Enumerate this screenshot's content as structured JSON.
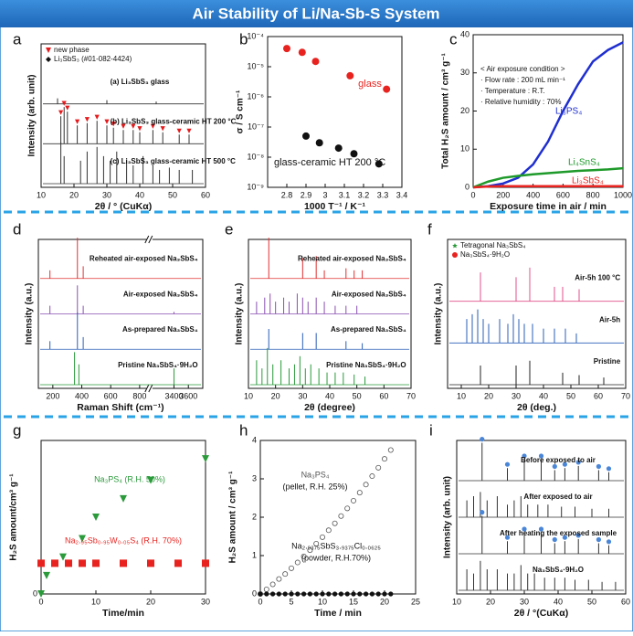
{
  "title": "Air Stability of Li/Na-Sb-S System",
  "chart_data": [
    {
      "type": "spectra",
      "panel": "a",
      "xlabel": "2θ / ° (CuKα)",
      "ylabel": "Intensity (arb. unit)",
      "xlim": [
        10,
        60
      ],
      "xticks": [
        10,
        20,
        30,
        40,
        50,
        60
      ],
      "legend": [
        {
          "label": "new phase",
          "marker": "triangle-down",
          "color": "#e41a1c"
        },
        {
          "label": "Li₃SbS₃ (#01-082-4424)",
          "marker": "diamond",
          "color": "#111111"
        }
      ],
      "series": [
        {
          "name": "(a) Li₃SbS₃ glass",
          "color": "#333333",
          "x": [
            15,
            30,
            45
          ],
          "values": [
            0.12,
            0.08,
            0.05
          ]
        },
        {
          "name": "(b) Li₃SbS₃ glass-ceramic HT 200 °C",
          "color": "#333333",
          "peak_marker": "#e41a1c",
          "x": [
            16,
            17,
            18,
            21,
            24,
            27,
            30,
            32,
            35,
            38,
            40,
            44,
            47,
            52,
            55
          ],
          "values": [
            0.6,
            0.8,
            0.7,
            0.4,
            0.45,
            0.5,
            0.4,
            0.35,
            0.3,
            0.3,
            0.25,
            0.3,
            0.25,
            0.2,
            0.2
          ]
        },
        {
          "name": "(c) Li₃SbS₃ glass-ceramic HT 500 °C",
          "color": "#333333",
          "x": [
            16,
            17,
            22,
            24,
            27,
            29,
            31,
            33,
            36,
            38,
            41,
            44,
            46,
            49,
            52,
            56
          ],
          "values": [
            0.9,
            0.6,
            0.5,
            0.7,
            0.8,
            0.6,
            0.5,
            0.7,
            0.5,
            0.4,
            0.6,
            0.4,
            0.3,
            0.35,
            0.3,
            0.3
          ]
        }
      ]
    },
    {
      "type": "scatter",
      "panel": "b",
      "xlabel": "1000 T⁻¹ / K⁻¹",
      "ylabel": "σ / S cm⁻¹",
      "ylog": true,
      "xlim": [
        2.7,
        3.4
      ],
      "xticks": [
        2.8,
        2.9,
        3.0,
        3.1,
        3.2,
        3.3,
        3.4
      ],
      "ylim": [
        1e-09,
        0.0001
      ],
      "yticks": [
        {
          "value": 1e-09,
          "label": "10⁻⁹"
        },
        {
          "value": 1e-08,
          "label": "10⁻⁸"
        },
        {
          "value": 1e-07,
          "label": "10⁻⁷"
        },
        {
          "value": 1e-06,
          "label": "10⁻⁶"
        },
        {
          "value": 1e-05,
          "label": "10⁻⁵"
        },
        {
          "value": 0.0001,
          "label": "10⁻⁴"
        }
      ],
      "series": [
        {
          "name": "glass",
          "color": "#e8231f",
          "marker": "circle",
          "x": [
            2.8,
            2.88,
            2.95,
            3.13,
            3.32
          ],
          "values": [
            4e-05,
            3e-05,
            1.5e-05,
            5e-06,
            1.8e-06
          ]
        },
        {
          "name": "glass-ceramic HT 200 °C",
          "color": "#111111",
          "marker": "circle",
          "x": [
            2.9,
            2.97,
            3.07,
            3.15,
            3.28
          ],
          "values": [
            5e-08,
            3e-08,
            2e-08,
            1.3e-08,
            6e-09
          ]
        }
      ]
    },
    {
      "type": "line",
      "panel": "c",
      "xlabel": "Exposure time in air / min",
      "ylabel": "Total H₂S amount / cm³ g⁻¹",
      "xlim": [
        0,
        1000
      ],
      "xticks": [
        0,
        200,
        400,
        600,
        800,
        1000
      ],
      "ylim": [
        0,
        40
      ],
      "yticks": [
        0,
        10,
        20,
        30,
        40
      ],
      "annotation": [
        "< Air exposure condition >",
        "· Flow rate : 200 mL min⁻¹",
        "· Temperature : R.T.",
        "· Relative humidity : 70%"
      ],
      "x": [
        0,
        100,
        200,
        300,
        400,
        500,
        600,
        700,
        800,
        900,
        1000
      ],
      "series": [
        {
          "name": "Li₃PS₄",
          "color": "#1f2fd0",
          "values": [
            0,
            0.3,
            1,
            2.5,
            6,
            12,
            20,
            27,
            33,
            36,
            38
          ]
        },
        {
          "name": "Li₄SnS₄",
          "color": "#1e9a2a",
          "values": [
            0,
            1.5,
            2.5,
            3,
            3.4,
            3.7,
            4,
            4.3,
            4.5,
            4.7,
            5
          ]
        },
        {
          "name": "Li₃SbS₄",
          "color": "#e8231f",
          "values": [
            0,
            0.2,
            0.3,
            0.3,
            0.3,
            0.3,
            0.3,
            0.3,
            0.3,
            0.3,
            0.3
          ]
        }
      ]
    },
    {
      "type": "spectra",
      "panel": "d",
      "xlabel": "Raman Shift (cm⁻¹)",
      "ylabel": "Intensity (a.u.)",
      "xlim": [
        100,
        3800
      ],
      "axis_break": [
        850,
        3100
      ],
      "xticks": [
        200,
        400,
        600,
        800,
        3400,
        3600
      ],
      "series": [
        {
          "name": "Reheated air-exposed Na₃SbS₄",
          "color": "#e03030",
          "x": [
            180,
            370,
            410
          ],
          "values": [
            0.2,
            1,
            0.3
          ]
        },
        {
          "name": "Air-exposed Na₃SbS₄",
          "color": "#8a4fb0",
          "x": [
            180,
            370,
            410,
            3400
          ],
          "values": [
            0.2,
            0.7,
            0.2,
            0.05
          ]
        },
        {
          "name": "As-prepared Na₃SbS₄",
          "color": "#2a5fb8",
          "x": [
            180,
            370,
            410
          ],
          "values": [
            0.2,
            0.9,
            0.3
          ]
        },
        {
          "name": "Pristine Na₃SbS₄·9H₂O",
          "color": "#2a9a3a",
          "x": [
            350,
            380,
            3400
          ],
          "values": [
            0.8,
            0.5,
            0.4
          ]
        }
      ]
    },
    {
      "type": "spectra",
      "panel": "e",
      "xlabel": "2θ (degree)",
      "ylabel": "Intensity (a.u.)",
      "xlim": [
        10,
        70
      ],
      "xticks": [
        10,
        20,
        30,
        40,
        50,
        60,
        70
      ],
      "series": [
        {
          "name": "Reheated air-exposed Na₃SbS₄",
          "color": "#e03030",
          "x": [
            17.5,
            30,
            35,
            38,
            46,
            49,
            52
          ],
          "values": [
            1,
            0.5,
            0.55,
            0.2,
            0.25,
            0.2,
            0.2
          ]
        },
        {
          "name": "Air-exposed Na₃SbS₄",
          "color": "#8a4fb0",
          "x": [
            13,
            16,
            18,
            20,
            23,
            25,
            28,
            30,
            32,
            35,
            38,
            42,
            46,
            50
          ],
          "values": [
            0.3,
            0.4,
            0.5,
            0.3,
            0.4,
            0.3,
            0.5,
            0.4,
            0.3,
            0.4,
            0.3,
            0.2,
            0.2,
            0.2
          ]
        },
        {
          "name": "As-prepared Na₃SbS₄",
          "color": "#2a5fb8",
          "x": [
            17.5,
            30,
            35,
            46,
            52
          ],
          "values": [
            0.5,
            0.4,
            0.4,
            0.2,
            0.15
          ]
        },
        {
          "name": "Pristine Na₃SbS₄·9H₂O",
          "color": "#2a9a3a",
          "x": [
            13,
            15,
            17,
            19,
            22,
            25,
            27,
            29,
            31,
            33,
            36,
            39,
            42,
            45,
            49,
            53
          ],
          "values": [
            0.6,
            0.4,
            0.9,
            0.5,
            0.6,
            0.4,
            0.5,
            0.7,
            0.4,
            0.5,
            0.4,
            0.3,
            0.3,
            0.3,
            0.25,
            0.2
          ]
        }
      ]
    },
    {
      "type": "spectra",
      "panel": "f",
      "xlabel": "2θ (deg.)",
      "ylabel": "Intensity (a.u.)",
      "xlim": [
        5,
        70
      ],
      "xticks": [
        10,
        20,
        30,
        40,
        50,
        60,
        70
      ],
      "legend": [
        {
          "label": "Tetragonal Na₃SbS₄",
          "marker": "star",
          "color": "#2a9a3a"
        },
        {
          "label": "Na₃SbS₄·9H₂O",
          "marker": "circle",
          "color": "#e8231f"
        }
      ],
      "series": [
        {
          "name": "Air-5h 100 °C",
          "color": "#e0508a",
          "x": [
            17,
            30,
            35,
            44,
            47,
            53
          ],
          "values": [
            0.6,
            0.5,
            0.7,
            0.3,
            0.3,
            0.25
          ]
        },
        {
          "name": "Air-5h",
          "color": "#2a5fb8",
          "x": [
            12,
            14,
            16,
            18,
            20,
            24,
            27,
            29,
            31,
            33,
            36,
            40,
            44,
            48,
            52
          ],
          "values": [
            0.5,
            0.6,
            0.7,
            0.5,
            0.4,
            0.5,
            0.4,
            0.6,
            0.5,
            0.4,
            0.4,
            0.3,
            0.3,
            0.3,
            0.2
          ]
        },
        {
          "name": "Pristine",
          "color": "#222222",
          "x": [
            17,
            30,
            35,
            47,
            53,
            62
          ],
          "values": [
            0.4,
            0.4,
            0.5,
            0.25,
            0.2,
            0.15
          ]
        }
      ]
    },
    {
      "type": "scatter",
      "panel": "g",
      "xlabel": "Time/min",
      "ylabel": "H₂S amount/cm³ g⁻¹",
      "xlim": [
        0,
        30
      ],
      "xticks": [
        0,
        10,
        20,
        30
      ],
      "ylim": [
        0,
        0.5
      ],
      "yticks": [
        0
      ],
      "series": [
        {
          "name": "Na₃PS₄ (R.H. 50%)",
          "color": "#2a9a3a",
          "marker": "triangle-down",
          "x": [
            0,
            1,
            4,
            7.5,
            10,
            15,
            20,
            30
          ],
          "values": [
            0,
            0.06,
            0.12,
            0.18,
            0.25,
            0.31,
            0.37,
            0.44
          ]
        },
        {
          "name": "Na₂.₉₅Sb₀.₉₅W₀.₀₅S₄ (R.H. 70%)",
          "color": "#e8231f",
          "marker": "square",
          "x": [
            0,
            2.5,
            5,
            7.5,
            10,
            15,
            20,
            25,
            30
          ],
          "values": [
            0.1,
            0.1,
            0.1,
            0.1,
            0.1,
            0.1,
            0.1,
            0.1,
            0.1
          ]
        }
      ]
    },
    {
      "type": "scatter",
      "panel": "h",
      "xlabel": "Time / min",
      "ylabel": "H₂S amount / cm³ g⁻¹",
      "xlim": [
        0,
        25
      ],
      "xticks": [
        0,
        5,
        10,
        15,
        20,
        25
      ],
      "ylim": [
        0,
        4
      ],
      "yticks": [
        0,
        1,
        2,
        3,
        4
      ],
      "series": [
        {
          "name": "Na₃PS₄",
          "note": "(pellet, R.H. 25%)",
          "color": "#555555",
          "marker": "open-circle",
          "x": [
            0,
            1,
            2,
            3,
            4,
            5,
            6,
            7,
            8,
            9,
            10,
            11,
            12,
            13,
            14,
            15,
            16,
            17,
            18,
            19,
            20,
            21
          ],
          "values": [
            0,
            0.12,
            0.25,
            0.39,
            0.52,
            0.67,
            0.82,
            0.98,
            1.14,
            1.31,
            1.48,
            1.66,
            1.84,
            2.03,
            2.23,
            2.43,
            2.64,
            2.85,
            3.07,
            3.29,
            3.52,
            3.75
          ]
        },
        {
          "name": "Na₂.₉₃₇₅SbS₃.₉₃₇₅Cl₀.₀₆₂₅",
          "note": "(powder, R.H.70%)",
          "color": "#111111",
          "marker": "circle",
          "x": [
            0,
            1,
            2,
            3,
            4,
            5,
            6,
            7,
            8,
            9,
            10,
            11,
            12,
            13,
            14,
            15,
            16,
            17,
            18,
            19,
            20,
            21
          ],
          "values": [
            0,
            0,
            0,
            0,
            0,
            0,
            0,
            0,
            0,
            0,
            0,
            0,
            0,
            0,
            0,
            0,
            0,
            0,
            0,
            0,
            0,
            0
          ]
        }
      ]
    },
    {
      "type": "spectra",
      "panel": "i",
      "xlabel": "2θ / °(CuKα)",
      "ylabel": "Intensity (arb. unit)",
      "xlim": [
        10,
        60
      ],
      "xticks": [
        10,
        20,
        30,
        40,
        50,
        60
      ],
      "series": [
        {
          "name": "Before exposed to air",
          "color": "#333333",
          "peak_marker": "#4a86d8",
          "x": [
            17.5,
            25,
            30,
            35,
            39,
            42,
            46,
            52,
            55
          ],
          "values": [
            0.9,
            0.3,
            0.5,
            0.5,
            0.25,
            0.3,
            0.35,
            0.25,
            0.2
          ]
        },
        {
          "name": "After exposed to air",
          "color": "#333333",
          "x": [
            13,
            15,
            17,
            19,
            22,
            25,
            27,
            29,
            31,
            34,
            37,
            41,
            45,
            50,
            55
          ],
          "values": [
            0.4,
            0.5,
            0.6,
            0.4,
            0.5,
            0.3,
            0.4,
            0.5,
            0.3,
            0.3,
            0.3,
            0.25,
            0.25,
            0.2,
            0.2
          ]
        },
        {
          "name": "After heating the exposed sample",
          "color": "#333333",
          "peak_marker": "#4a86d8",
          "x": [
            17.5,
            25,
            30,
            35,
            39,
            42,
            46,
            52,
            55
          ],
          "values": [
            0.9,
            0.3,
            0.5,
            0.5,
            0.25,
            0.3,
            0.35,
            0.25,
            0.2
          ]
        },
        {
          "name": "Na₃SbS₄·9H₂O",
          "color": "#333333",
          "x": [
            13,
            15,
            17,
            19,
            22,
            25,
            27,
            29,
            31,
            33,
            36,
            39,
            42,
            45,
            49,
            53,
            57
          ],
          "values": [
            0.5,
            0.4,
            0.7,
            0.5,
            0.5,
            0.4,
            0.4,
            0.6,
            0.4,
            0.4,
            0.3,
            0.3,
            0.3,
            0.25,
            0.25,
            0.2,
            0.2
          ]
        }
      ]
    }
  ]
}
